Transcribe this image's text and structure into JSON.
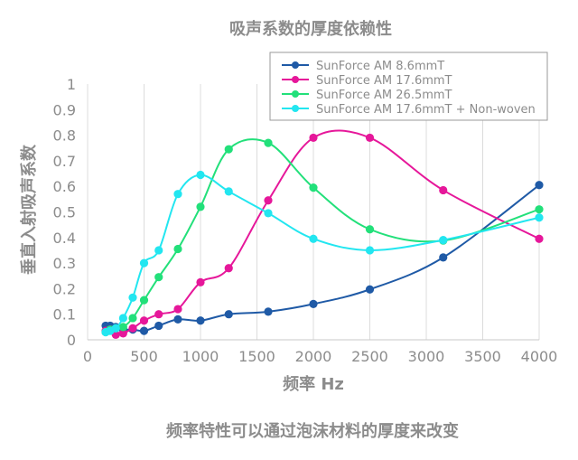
{
  "chart_data": {
    "type": "line",
    "title": "吸声系数的厚度依赖性",
    "xlabel": "频率 Hz",
    "ylabel": "垂直入射吸声系数",
    "caption": "频率特性可以通过泡沫材料的厚度来改变",
    "xlim": [
      0,
      4000
    ],
    "ylim": [
      0,
      1
    ],
    "xticks": [
      0,
      500,
      1000,
      1500,
      2000,
      2500,
      3000,
      3500,
      4000
    ],
    "yticks": [
      0,
      0.1,
      0.2,
      0.3,
      0.4,
      0.5,
      0.6,
      0.7,
      0.8,
      0.9,
      1
    ],
    "grid": "vertical",
    "legend_position": "top-right",
    "series": [
      {
        "name": "SunForce AM 8.6mmT",
        "color": "#1f5aa6",
        "x": [
          160,
          200,
          250,
          315,
          400,
          500,
          630,
          800,
          1000,
          1250,
          1600,
          2000,
          2500,
          3150,
          4000
        ],
        "y": [
          0.055,
          0.055,
          0.05,
          0.04,
          0.04,
          0.035,
          0.055,
          0.08,
          0.075,
          0.1,
          0.11,
          0.14,
          0.197,
          0.322,
          0.605
        ]
      },
      {
        "name": "SunForce AM 17.6mmT",
        "color": "#e6179a",
        "x": [
          160,
          200,
          250,
          315,
          400,
          500,
          630,
          800,
          1000,
          1250,
          1600,
          2000,
          2500,
          3150,
          4000
        ],
        "y": [
          0.035,
          0.04,
          0.02,
          0.025,
          0.045,
          0.075,
          0.1,
          0.12,
          0.225,
          0.28,
          0.545,
          0.79,
          0.79,
          0.585,
          0.395
        ]
      },
      {
        "name": "SunForce AM 26.5mmT",
        "color": "#22e07a",
        "x": [
          160,
          200,
          250,
          315,
          400,
          500,
          630,
          800,
          1000,
          1250,
          1600,
          2000,
          2500,
          3150,
          4000
        ],
        "y": [
          0.03,
          0.04,
          0.045,
          0.05,
          0.085,
          0.155,
          0.245,
          0.355,
          0.52,
          0.745,
          0.77,
          0.595,
          0.432,
          0.388,
          0.51
        ]
      },
      {
        "name": "SunForce AM 17.6mmT + Non-woven",
        "color": "#22e6f0",
        "x": [
          160,
          200,
          250,
          315,
          400,
          500,
          630,
          800,
          1000,
          1250,
          1600,
          2000,
          2500,
          3150,
          4000
        ],
        "y": [
          0.03,
          0.035,
          0.045,
          0.085,
          0.165,
          0.3,
          0.35,
          0.57,
          0.645,
          0.58,
          0.495,
          0.395,
          0.35,
          0.39,
          0.478
        ]
      }
    ]
  }
}
